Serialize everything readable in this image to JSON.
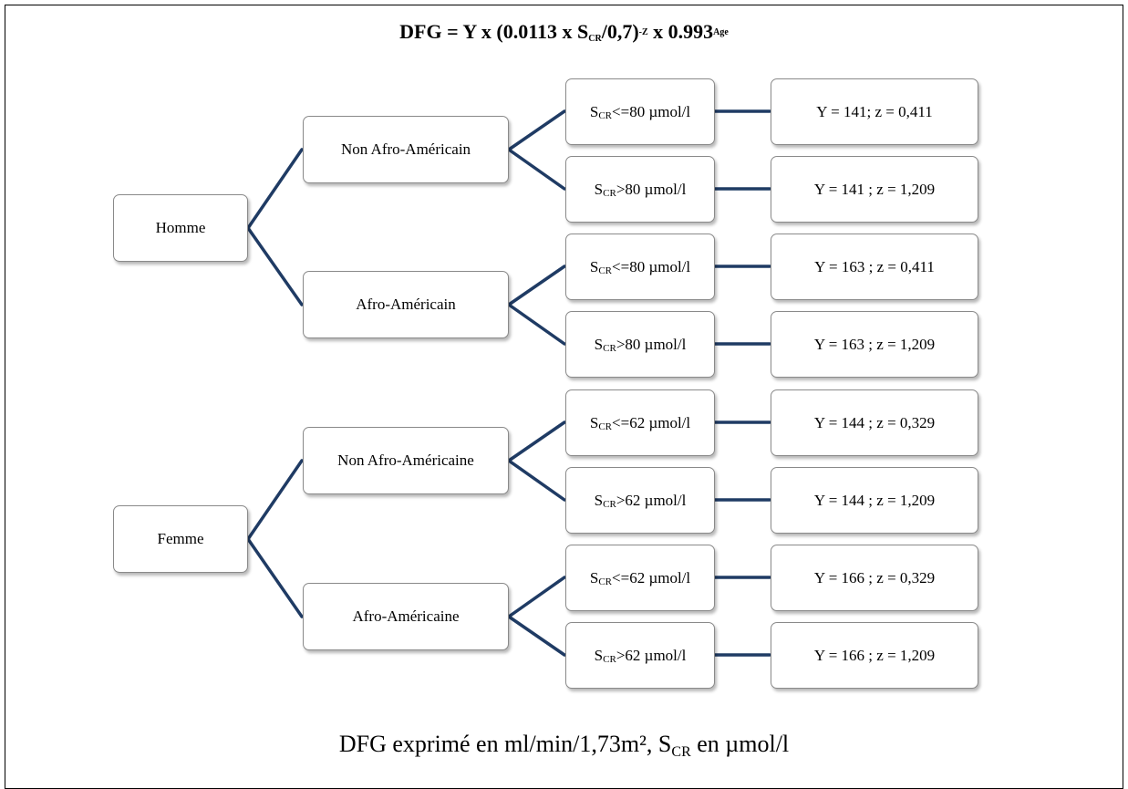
{
  "formula": {
    "lead": "DFG = Y x (0.0113 x S",
    "s_sub": "CR",
    "mid": "/0,7)",
    "exp1": "-Z",
    "mid2": " x 0.993",
    "exp2": "Age"
  },
  "colors": {
    "connector": "#1f3b64",
    "box_border": "#8a8a8a",
    "frame": "#000000"
  },
  "sexes": [
    {
      "label": "Homme",
      "groups": [
        {
          "label": "Non Afro-Américain",
          "rows": [
            {
              "cond_prefix": "S",
              "cond_sub": "CR",
              "cond_text": "<=80 µmol/l",
              "result": "Y = 141; z = 0,411"
            },
            {
              "cond_prefix": "S",
              "cond_sub": "CR",
              "cond_text": ">80 µmol/l",
              "result": "Y = 141 ; z = 1,209"
            }
          ]
        },
        {
          "label": "Afro-Américain",
          "rows": [
            {
              "cond_prefix": "S",
              "cond_sub": "CR",
              "cond_text": "<=80 µmol/l",
              "result": "Y = 163 ; z = 0,411"
            },
            {
              "cond_prefix": "S",
              "cond_sub": "CR",
              "cond_text": ">80 µmol/l",
              "result": "Y = 163 ; z = 1,209"
            }
          ]
        }
      ]
    },
    {
      "label": "Femme",
      "groups": [
        {
          "label": "Non Afro-Américaine",
          "rows": [
            {
              "cond_prefix": "S",
              "cond_sub": "CR",
              "cond_text": "<=62 µmol/l",
              "result": "Y = 144 ; z = 0,329"
            },
            {
              "cond_prefix": "S",
              "cond_sub": "CR",
              "cond_text": ">62 µmol/l",
              "result": "Y = 144 ; z = 1,209"
            }
          ]
        },
        {
          "label": "Afro-Américaine",
          "rows": [
            {
              "cond_prefix": "S",
              "cond_sub": "CR",
              "cond_text": "<=62 µmol/l",
              "result": "Y = 166 ; z = 0,329"
            },
            {
              "cond_prefix": "S",
              "cond_sub": "CR",
              "cond_text": ">62 µmol/l",
              "result": "Y = 166 ; z = 1,209"
            }
          ]
        }
      ]
    }
  ],
  "footnote": {
    "part1": "DFG exprimé en ml/min/1,73m², S",
    "sub": "CR",
    "part2": " en µmol/l"
  }
}
